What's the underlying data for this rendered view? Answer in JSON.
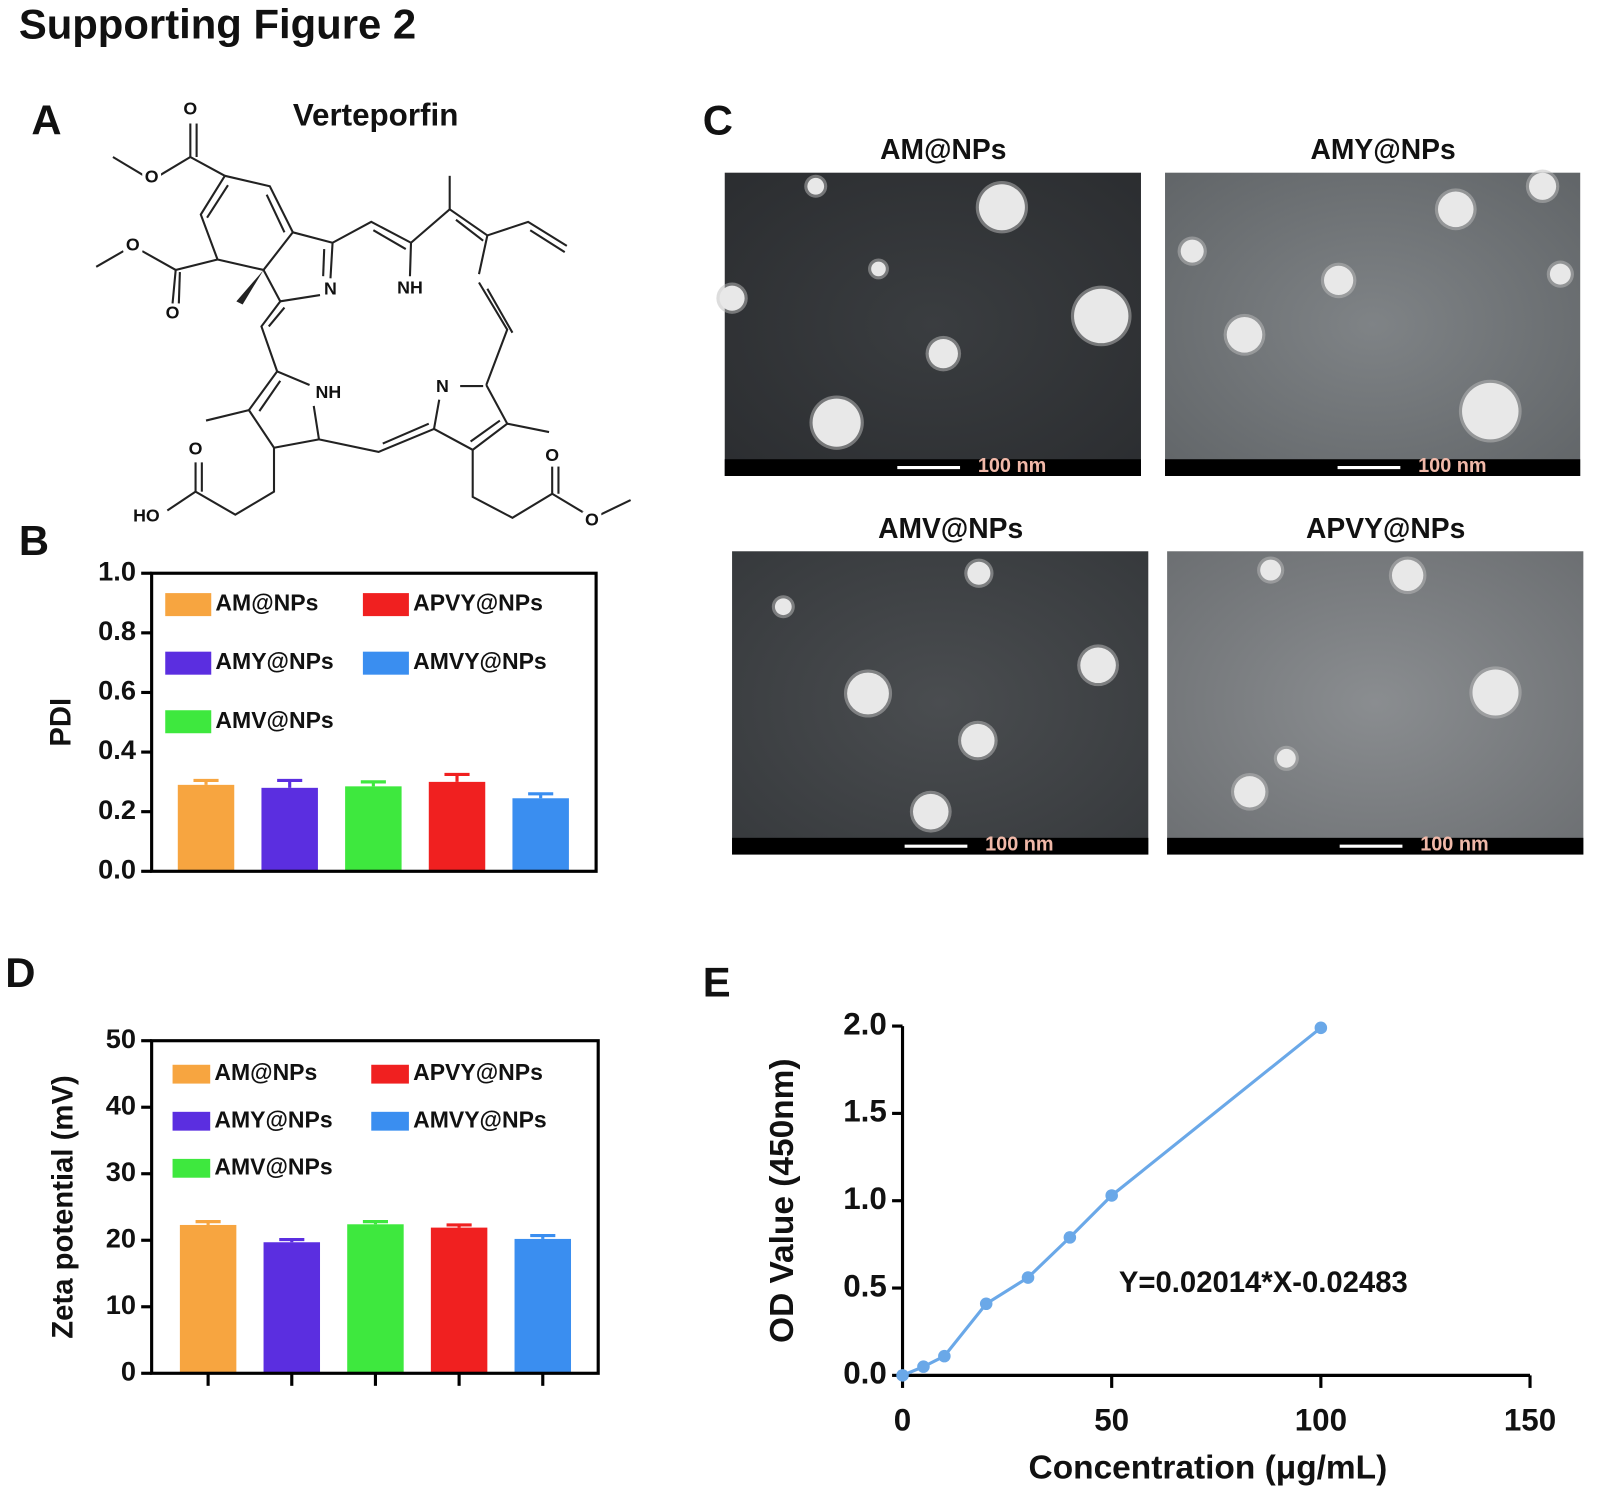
{
  "title": "Supporting Figure 2",
  "panel_labels": [
    "A",
    "B",
    "C",
    "D",
    "E"
  ],
  "structure": {
    "name": "Verteporfin",
    "atoms": [
      "O",
      "O",
      "O",
      "O",
      "N",
      "NH",
      "NH",
      "N",
      "O",
      "HO",
      "O",
      "O"
    ]
  },
  "tem_images": [
    {
      "title": "AM@NPs",
      "scale_bar": "100 nm"
    },
    {
      "title": "AMY@NPs",
      "scale_bar": "100 nm"
    },
    {
      "title": "AMV@NPs",
      "scale_bar": "100 nm"
    },
    {
      "title": "APVY@NPs",
      "scale_bar": "100 nm"
    }
  ],
  "chart_data": [
    {
      "type": "bar",
      "ylabel": "PDI",
      "series": [
        {
          "name": "AM@NPs",
          "color": "#f7a540",
          "values": [
            0.29
          ],
          "errors": [
            0.015
          ]
        },
        {
          "name": "AMY@NPs",
          "color": "#5b2ee0",
          "values": [
            0.28
          ],
          "errors": [
            0.025
          ]
        },
        {
          "name": "AMV@NPs",
          "color": "#3ee83e",
          "values": [
            0.285
          ],
          "errors": [
            0.015
          ]
        },
        {
          "name": "APVY@NPs",
          "color": "#f02020",
          "values": [
            0.3
          ],
          "errors": [
            0.025
          ]
        },
        {
          "name": "AMVY@NPs",
          "color": "#3a8ef0",
          "values": [
            0.245
          ],
          "errors": [
            0.015
          ]
        }
      ],
      "ylim": [
        0,
        1
      ],
      "yticks": [
        {
          "value": 0,
          "label": "0.0"
        },
        0.2,
        0.4,
        0.6,
        0.8,
        {
          "value": 1,
          "label": "1.0"
        }
      ]
    },
    {
      "type": "bar",
      "ylabel": "Zeta potential  (mV)",
      "series": [
        {
          "name": "AM@NPs",
          "color": "#f7a540",
          "values": [
            22.3
          ],
          "errors": [
            0.5
          ]
        },
        {
          "name": "AMY@NPs",
          "color": "#5b2ee0",
          "values": [
            19.7
          ],
          "errors": [
            0.4
          ]
        },
        {
          "name": "AMV@NPs",
          "color": "#3ee83e",
          "values": [
            22.4
          ],
          "errors": [
            0.4
          ]
        },
        {
          "name": "APVY@NPs",
          "color": "#f02020",
          "values": [
            21.9
          ],
          "errors": [
            0.4
          ]
        },
        {
          "name": "AMVY@NPs",
          "color": "#3a8ef0",
          "values": [
            20.2
          ],
          "errors": [
            0.5
          ]
        }
      ],
      "ylim": [
        0,
        50
      ],
      "yticks": [
        0,
        10,
        20,
        30,
        40,
        50
      ]
    },
    {
      "type": "line",
      "xlabel": "Concentration (μg/mL)",
      "ylabel": "OD Value (450nm)",
      "annotation": "Y=0.02014*X-0.02483",
      "color": "#6aa8e8",
      "x": [
        0,
        5,
        10,
        20,
        30,
        40,
        50,
        100
      ],
      "values": [
        0,
        0.05,
        0.11,
        0.41,
        0.56,
        0.79,
        1.03,
        1.99
      ],
      "xlim": [
        0,
        150
      ],
      "xticks": [
        0,
        50,
        100,
        150
      ],
      "ylim": [
        0,
        2
      ],
      "yticks": [
        {
          "value": 0,
          "label": "0.0"
        },
        0.5,
        {
          "value": 1,
          "label": "1.0"
        },
        1.5,
        {
          "value": 2,
          "label": "2.0"
        }
      ]
    }
  ]
}
